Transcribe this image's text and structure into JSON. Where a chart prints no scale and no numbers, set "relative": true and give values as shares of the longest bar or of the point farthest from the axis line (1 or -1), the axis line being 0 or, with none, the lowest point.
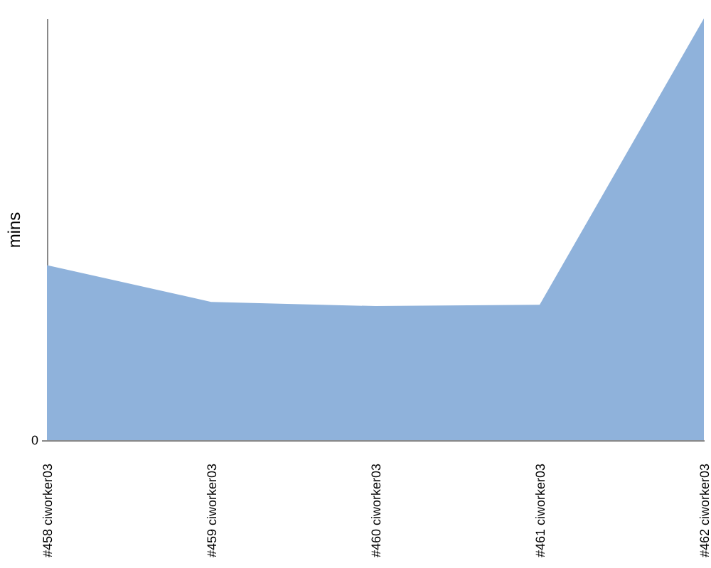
{
  "chart_data": {
    "type": "area",
    "ylabel": "mins",
    "relative": true,
    "categories": [
      "#458 ciworker03",
      "#459 ciworker03",
      "#460 ciworker03",
      "#461 ciworker03",
      "#462 ciworker03"
    ],
    "values": [
      0.415,
      0.328,
      0.318,
      0.321,
      1
    ],
    "color": "#8fb2db",
    "annotations": [
      "0"
    ]
  }
}
